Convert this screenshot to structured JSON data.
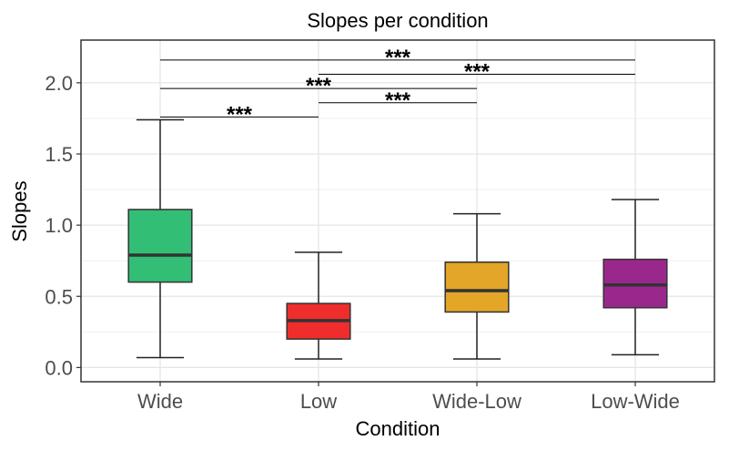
{
  "chart_data": {
    "type": "box",
    "title": "Slopes per condition",
    "xlabel": "Condition",
    "ylabel": "Slopes",
    "ylim": [
      -0.1,
      2.3
    ],
    "yticks": [
      "0.0",
      "0.5",
      "1.0",
      "1.5",
      "2.0"
    ],
    "ytick_values": [
      0.0,
      0.5,
      1.0,
      1.5,
      2.0
    ],
    "grid": true,
    "categories": [
      "Wide",
      "Low",
      "Wide-Low",
      "Low-Wide"
    ],
    "boxes": [
      {
        "name": "Wide",
        "min": 0.07,
        "q1": 0.6,
        "median": 0.79,
        "q3": 1.11,
        "max": 1.74,
        "color": "#27bb6e"
      },
      {
        "name": "Low",
        "min": 0.06,
        "q1": 0.2,
        "median": 0.33,
        "q3": 0.45,
        "max": 0.81,
        "color": "#ee2222"
      },
      {
        "name": "Wide-Low",
        "min": 0.06,
        "q1": 0.39,
        "median": 0.54,
        "q3": 0.74,
        "max": 1.08,
        "color": "#e2a11c"
      },
      {
        "name": "Low-Wide",
        "min": 0.09,
        "q1": 0.42,
        "median": 0.58,
        "q3": 0.76,
        "max": 1.18,
        "color": "#951c86"
      }
    ],
    "significance": [
      {
        "from": "Wide",
        "to": "Low-Wide",
        "y": 2.16,
        "label": "***"
      },
      {
        "from": "Low",
        "to": "Low-Wide",
        "y": 2.06,
        "label": "***"
      },
      {
        "from": "Wide",
        "to": "Wide-Low",
        "y": 1.96,
        "label": "***"
      },
      {
        "from": "Low",
        "to": "Wide-Low",
        "y": 1.86,
        "label": "***"
      },
      {
        "from": "Wide",
        "to": "Low",
        "y": 1.76,
        "label": "***"
      }
    ]
  }
}
